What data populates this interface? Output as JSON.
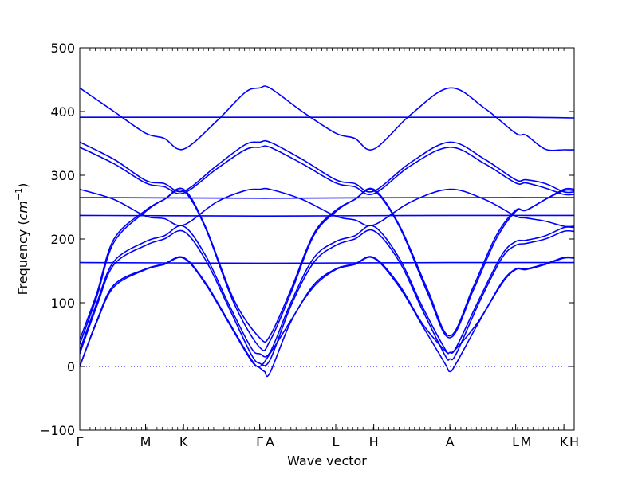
{
  "chart_data": {
    "type": "line",
    "title": "",
    "xlabel": "Wave vector",
    "ylabel_main": "Frequency (",
    "ylabel_math": "cm",
    "ylabel_exp": "−1",
    "ylabel_close": ")",
    "ylim": [
      -100,
      500
    ],
    "yticks": [
      -100,
      0,
      100,
      200,
      300,
      400,
      500
    ],
    "grid": false,
    "zero_line": true,
    "line_color": "#0000ff",
    "kpoints": [
      {
        "label": "Γ",
        "x": 0.0
      },
      {
        "label": "M",
        "x": 0.577
      },
      {
        "label": "K",
        "x": 0.91
      },
      {
        "label": "Γ",
        "x": 1.577
      },
      {
        "label": "A",
        "x": 1.667
      },
      {
        "label": "L",
        "x": 2.244
      },
      {
        "label": "H",
        "x": 2.577
      },
      {
        "label": "A",
        "x": 3.244
      },
      {
        "label": "L",
        "x": 3.821
      },
      {
        "label": "M",
        "x": 3.911
      },
      {
        "label": "K",
        "x": 4.244
      },
      {
        "label": "H",
        "x": 4.334
      }
    ],
    "xlim": [
      0,
      4.334
    ],
    "series": [
      {
        "x": [
          0,
          0.3,
          0.577,
          0.74,
          0.91,
          1.2,
          1.45,
          1.577,
          1.667,
          1.95,
          2.244,
          2.41,
          2.577,
          2.9,
          3.244,
          3.55,
          3.821,
          3.911,
          4.08,
          4.244,
          4.334
        ],
        "y": [
          437,
          400,
          366,
          358,
          341,
          385,
          430,
          437,
          437,
          400,
          366,
          358,
          341,
          395,
          437,
          405,
          366,
          363,
          341,
          340,
          340
        ]
      },
      {
        "x": [
          0,
          1.577,
          1.667,
          3.244,
          3.911,
          4.334
        ],
        "y": [
          391,
          391,
          391,
          391,
          391,
          390
        ]
      },
      {
        "x": [
          0,
          0.3,
          0.577,
          0.74,
          0.91,
          1.2,
          1.45,
          1.577,
          1.667,
          1.95,
          2.244,
          2.41,
          2.577,
          2.9,
          3.244,
          3.55,
          3.821,
          3.911,
          4.08,
          4.244,
          4.334
        ],
        "y": [
          352,
          325,
          292,
          287,
          275,
          315,
          348,
          352,
          352,
          325,
          293,
          287,
          275,
          320,
          352,
          325,
          293,
          293,
          287,
          274,
          274
        ]
      },
      {
        "x": [
          0,
          0.3,
          0.577,
          0.74,
          0.91,
          1.2,
          1.45,
          1.577,
          1.667,
          1.95,
          2.244,
          2.41,
          2.577,
          2.9,
          3.244,
          3.55,
          3.821,
          3.911,
          4.08,
          4.244,
          4.334
        ],
        "y": [
          344,
          318,
          288,
          282,
          272,
          310,
          340,
          344,
          344,
          318,
          288,
          282,
          271,
          315,
          344,
          318,
          288,
          288,
          280,
          270,
          270
        ]
      },
      {
        "x": [
          0,
          0.3,
          0.577,
          0.74,
          0.91,
          1.2,
          1.45,
          1.577,
          1.667,
          1.95,
          2.244,
          2.41,
          2.577,
          2.9,
          3.244,
          3.55,
          3.821,
          3.911,
          4.08,
          4.244,
          4.334
        ],
        "y": [
          278,
          262,
          236,
          232,
          222,
          258,
          276,
          278,
          278,
          262,
          236,
          230,
          222,
          258,
          278,
          262,
          236,
          233,
          228,
          220,
          220
        ]
      },
      {
        "x": [
          0,
          1.577,
          1.667,
          3.244,
          3.911,
          4.334
        ],
        "y": [
          265,
          264,
          264,
          265,
          265,
          265
        ]
      },
      {
        "x": [
          0,
          1.577,
          1.667,
          3.244,
          3.911,
          4.334
        ],
        "y": [
          237,
          236,
          236,
          237,
          237,
          237
        ]
      },
      {
        "x": [
          0,
          1.577,
          1.667,
          3.244,
          3.911,
          4.334
        ],
        "y": [
          163,
          162,
          162,
          163,
          163,
          163
        ]
      },
      {
        "x": [
          0,
          0.15,
          0.3,
          0.577,
          0.74,
          0.91,
          1.1,
          1.35,
          1.577,
          1.667,
          1.85,
          2.05,
          2.244,
          2.41,
          2.577,
          2.8,
          3.05,
          3.244,
          3.45,
          3.65,
          3.821,
          3.911,
          4.08,
          4.244,
          4.334
        ],
        "y": [
          35,
          110,
          195,
          243,
          262,
          275,
          218,
          100,
          30,
          40,
          115,
          205,
          243,
          262,
          276,
          220,
          115,
          45,
          120,
          200,
          243,
          245,
          262,
          276,
          276
        ]
      },
      {
        "x": [
          0,
          0.15,
          0.3,
          0.577,
          0.74,
          0.91,
          1.1,
          1.35,
          1.577,
          1.667,
          1.85,
          2.05,
          2.244,
          2.41,
          2.577,
          2.8,
          3.05,
          3.244,
          3.45,
          3.65,
          3.821,
          3.911,
          4.08,
          4.244,
          4.334
        ],
        "y": [
          42,
          115,
          200,
          245,
          262,
          278,
          220,
          105,
          45,
          48,
          120,
          208,
          245,
          262,
          278,
          222,
          120,
          48,
          125,
          205,
          245,
          245,
          262,
          278,
          278
        ]
      },
      {
        "x": [
          0,
          0.15,
          0.3,
          0.577,
          0.74,
          0.91,
          1.1,
          1.3,
          1.5,
          1.577,
          1.667,
          1.85,
          2.05,
          2.244,
          2.41,
          2.577,
          2.8,
          3.0,
          3.2,
          3.244,
          3.3,
          3.5,
          3.7,
          3.821,
          3.911,
          4.08,
          4.244,
          4.334
        ],
        "y": [
          25,
          100,
          165,
          196,
          205,
          220,
          175,
          100,
          30,
          20,
          22,
          100,
          170,
          196,
          205,
          220,
          170,
          95,
          28,
          22,
          30,
          105,
          175,
          196,
          198,
          205,
          218,
          218
        ]
      },
      {
        "x": [
          0,
          0.15,
          0.3,
          0.577,
          0.74,
          0.91,
          1.1,
          1.3,
          1.5,
          1.577,
          1.667,
          1.85,
          2.05,
          2.244,
          2.41,
          2.577,
          2.8,
          3.0,
          3.2,
          3.244,
          3.3,
          3.5,
          3.7,
          3.821,
          3.911,
          4.08,
          4.244,
          4.334
        ],
        "y": [
          20,
          95,
          160,
          190,
          200,
          212,
          168,
          95,
          20,
          5,
          10,
          95,
          163,
          190,
          200,
          213,
          165,
          90,
          18,
          12,
          20,
          100,
          170,
          190,
          193,
          200,
          212,
          212
        ]
      },
      {
        "x": [
          0,
          0.15,
          0.3,
          0.577,
          0.74,
          0.91,
          1.1,
          1.3,
          1.5,
          1.577,
          1.62,
          1.667,
          1.85,
          2.05,
          2.244,
          2.41,
          2.577,
          2.8,
          3.0,
          3.2,
          3.244,
          3.3,
          3.5,
          3.7,
          3.821,
          3.911,
          4.08,
          4.244,
          4.334
        ],
        "y": [
          0,
          70,
          125,
          152,
          160,
          170,
          130,
          70,
          10,
          -2,
          -8,
          -10,
          70,
          125,
          152,
          160,
          170,
          125,
          65,
          5,
          -8,
          5,
          70,
          130,
          152,
          152,
          160,
          170,
          170
        ]
      },
      {
        "x": [
          0,
          0.15,
          0.3,
          0.577,
          0.74,
          0.91,
          1.1,
          1.3,
          1.5,
          1.577,
          1.667,
          1.85,
          2.05,
          2.244,
          2.41,
          2.577,
          2.8,
          3.0,
          3.2,
          3.244,
          3.3,
          3.5,
          3.7,
          3.821,
          3.911,
          4.08,
          4.244,
          4.334
        ],
        "y": [
          0,
          72,
          128,
          153,
          161,
          171,
          132,
          72,
          12,
          0,
          20,
          72,
          128,
          153,
          161,
          171,
          128,
          68,
          25,
          22,
          28,
          72,
          132,
          153,
          153,
          161,
          171,
          171
        ]
      }
    ]
  }
}
